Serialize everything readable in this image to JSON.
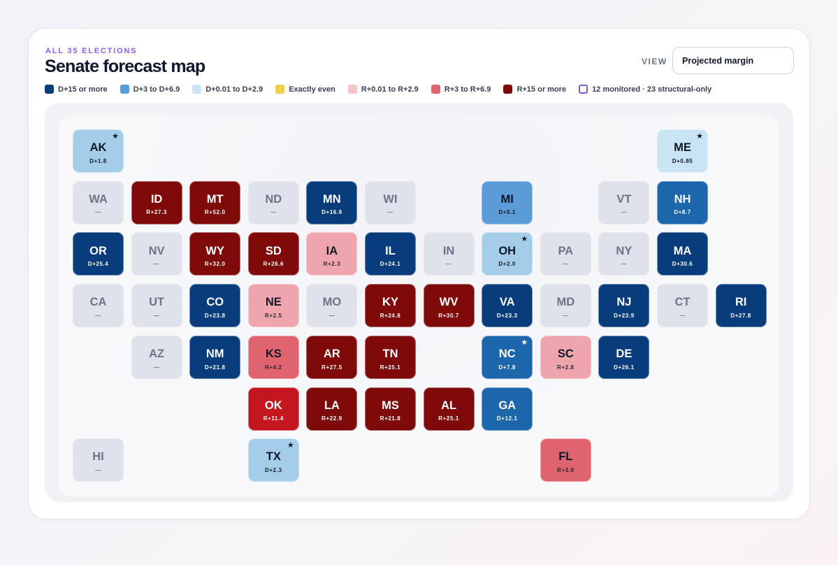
{
  "header": {
    "eyebrow": "ALL 35 ELECTIONS",
    "title": "Senate forecast map",
    "view_label": "VIEW",
    "view_value": "Projected margin"
  },
  "legend": [
    {
      "label": "D+15 or more",
      "color": "#083c7a"
    },
    {
      "label": "D+3 to D+6.9",
      "color": "#5b9bd8"
    },
    {
      "label": "D+0.01 to D+2.9",
      "color": "#c9e4f3"
    },
    {
      "label": "Exactly even",
      "color": "#f2cf4f"
    },
    {
      "label": "R+0.01 to R+2.9",
      "color": "#f5c4c9"
    },
    {
      "label": "R+3 to R+6.9",
      "color": "#e0646f"
    },
    {
      "label": "R+15 or more",
      "color": "#7e0a0a"
    }
  ],
  "legend_monitored": "12 monitored · 23 structural-only",
  "states": [
    {
      "abbr": "AK",
      "margin": "D+1.8",
      "cls": "c-d1",
      "star": true
    },
    {
      "abbr": "ME",
      "margin": "D+0.85",
      "cls": "c-d0",
      "star": true
    },
    {
      "abbr": "WA",
      "margin": "—",
      "cls": "c-none"
    },
    {
      "abbr": "ID",
      "margin": "R+27.3",
      "cls": "c-r15"
    },
    {
      "abbr": "MT",
      "margin": "R+52.0",
      "cls": "c-r15"
    },
    {
      "abbr": "ND",
      "margin": "—",
      "cls": "c-none"
    },
    {
      "abbr": "MN",
      "margin": "D+16.9",
      "cls": "c-d15"
    },
    {
      "abbr": "WI",
      "margin": "—",
      "cls": "c-none"
    },
    {
      "abbr": "MI",
      "margin": "D+5.1",
      "cls": "c-d3"
    },
    {
      "abbr": "VT",
      "margin": "—",
      "cls": "c-none"
    },
    {
      "abbr": "NH",
      "margin": "D+8.7",
      "cls": "c-d7"
    },
    {
      "abbr": "OR",
      "margin": "D+25.4",
      "cls": "c-d15"
    },
    {
      "abbr": "NV",
      "margin": "—",
      "cls": "c-none"
    },
    {
      "abbr": "WY",
      "margin": "R+32.0",
      "cls": "c-r15"
    },
    {
      "abbr": "SD",
      "margin": "R+26.6",
      "cls": "c-r15"
    },
    {
      "abbr": "IA",
      "margin": "R+2.3",
      "cls": "c-r1"
    },
    {
      "abbr": "IL",
      "margin": "D+24.1",
      "cls": "c-d15"
    },
    {
      "abbr": "IN",
      "margin": "—",
      "cls": "c-none"
    },
    {
      "abbr": "OH",
      "margin": "D+2.0",
      "cls": "c-d1",
      "star": true
    },
    {
      "abbr": "PA",
      "margin": "—",
      "cls": "c-none"
    },
    {
      "abbr": "NY",
      "margin": "—",
      "cls": "c-none"
    },
    {
      "abbr": "MA",
      "margin": "D+30.6",
      "cls": "c-d15"
    },
    {
      "abbr": "CA",
      "margin": "—",
      "cls": "c-none"
    },
    {
      "abbr": "UT",
      "margin": "—",
      "cls": "c-none"
    },
    {
      "abbr": "CO",
      "margin": "D+23.8",
      "cls": "c-d15"
    },
    {
      "abbr": "NE",
      "margin": "R+2.5",
      "cls": "c-r1"
    },
    {
      "abbr": "MO",
      "margin": "—",
      "cls": "c-none"
    },
    {
      "abbr": "KY",
      "margin": "R+24.8",
      "cls": "c-r15"
    },
    {
      "abbr": "WV",
      "margin": "R+30.7",
      "cls": "c-r15"
    },
    {
      "abbr": "VA",
      "margin": "D+23.3",
      "cls": "c-d15"
    },
    {
      "abbr": "MD",
      "margin": "—",
      "cls": "c-none"
    },
    {
      "abbr": "NJ",
      "margin": "D+23.9",
      "cls": "c-d15"
    },
    {
      "abbr": "CT",
      "margin": "—",
      "cls": "c-none"
    },
    {
      "abbr": "RI",
      "margin": "D+27.8",
      "cls": "c-d15"
    },
    {
      "abbr": "AZ",
      "margin": "—",
      "cls": "c-none"
    },
    {
      "abbr": "NM",
      "margin": "D+21.8",
      "cls": "c-d15"
    },
    {
      "abbr": "KS",
      "margin": "R+4.2",
      "cls": "c-r3"
    },
    {
      "abbr": "AR",
      "margin": "R+27.5",
      "cls": "c-r15"
    },
    {
      "abbr": "TN",
      "margin": "R+25.1",
      "cls": "c-r15"
    },
    {
      "abbr": "NC",
      "margin": "D+7.8",
      "cls": "c-d7",
      "star": true
    },
    {
      "abbr": "SC",
      "margin": "R+2.8",
      "cls": "c-r1"
    },
    {
      "abbr": "DE",
      "margin": "D+26.1",
      "cls": "c-d15"
    },
    {
      "abbr": "OK",
      "margin": "R+11.4",
      "cls": "c-r7"
    },
    {
      "abbr": "LA",
      "margin": "R+22.9",
      "cls": "c-r15"
    },
    {
      "abbr": "MS",
      "margin": "R+21.8",
      "cls": "c-r15"
    },
    {
      "abbr": "AL",
      "margin": "R+25.1",
      "cls": "c-r15"
    },
    {
      "abbr": "GA",
      "margin": "D+12.1",
      "cls": "c-d7"
    },
    {
      "abbr": "HI",
      "margin": "—",
      "cls": "c-none"
    },
    {
      "abbr": "TX",
      "margin": "D+2.3",
      "cls": "c-d1",
      "star": true
    },
    {
      "abbr": "FL",
      "margin": "R+3.9",
      "cls": "c-r3"
    }
  ]
}
